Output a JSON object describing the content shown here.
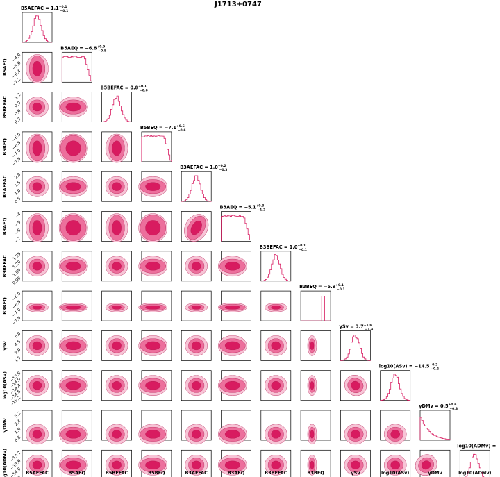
{
  "chart_data": {
    "type": "corner",
    "title": "J1713+0747",
    "colors": {
      "c1": "#d81b60",
      "c2": "#ec6f9c",
      "c3": "#f7c4d6",
      "hist": "#d81b60"
    },
    "params": [
      {
        "label": "B5AEFAC",
        "ylabel": "",
        "median_label": "B5AEFAC = 1.1",
        "sup": "+0.1",
        "sub": "−0.1",
        "xticks": [
          "0.4",
          "0.8",
          "1.2",
          "1.6",
          "2.0"
        ],
        "yticks": []
      },
      {
        "label": "B5AEQ",
        "ylabel": "B5AEQ",
        "median_label": "B5AEQ = −6.8",
        "sup": "+0.9",
        "sub": "−0.8",
        "xticks": [
          "−7.2",
          "−6.4",
          "−5.6",
          "−4.8"
        ],
        "yticks": [
          "−4.8",
          "−5.6",
          "−6.4",
          "−7.2"
        ]
      },
      {
        "label": "B5BEFAC",
        "ylabel": "B5BEFAC",
        "median_label": "B5BEFAC = 0.8",
        "sup": "+0.1",
        "sub": "−0.0",
        "xticks": [
          "0.6",
          "0.9",
          "1.2"
        ],
        "yticks": [
          "1.2",
          "0.9",
          "0.6",
          "0.3"
        ]
      },
      {
        "label": "B5BEQ",
        "ylabel": "B5BEQ",
        "median_label": "B5BEQ = −7.1",
        "sup": "+0.6",
        "sub": "−0.6",
        "xticks": [
          "−7.5",
          "−7.0",
          "−6.5"
        ],
        "yticks": [
          "−6.0",
          "−6.5",
          "−7.0",
          "−7.5"
        ]
      },
      {
        "label": "B3AEFAC",
        "ylabel": "B3AEFAC",
        "median_label": "B3AEFAC = 1.0",
        "sup": "+0.2",
        "sub": "−0.3",
        "xticks": [
          "0.5",
          "1.0",
          "1.5",
          "2.0"
        ],
        "yticks": [
          "2.0",
          "1.5",
          "1.0",
          "0.5"
        ]
      },
      {
        "label": "B3AEQ",
        "ylabel": "B3AEQ",
        "median_label": "B3AEQ = −5.1",
        "sup": "+0.3",
        "sub": "−1.2",
        "xticks": [
          "−7",
          "−6",
          "−5",
          "−4"
        ],
        "yticks": [
          "−4",
          "−5",
          "−6",
          "−7"
        ]
      },
      {
        "label": "B3BEFAC",
        "ylabel": "B3BEFAC",
        "median_label": "B3BEFAC = 1.0",
        "sup": "+0.1",
        "sub": "−0.1",
        "xticks": [
          "0.90",
          "1.05",
          "1.20",
          "1.35"
        ],
        "yticks": [
          "1.35",
          "1.20",
          "1.05",
          "0.90"
        ]
      },
      {
        "label": "B3BEQ",
        "ylabel": "B3BEQ",
        "median_label": "B3BEQ = −5.9",
        "sup": "+0.1",
        "sub": "−0.1",
        "xticks": [
          "−7.5",
          "−7.0",
          "−6.5",
          "−6.0"
        ],
        "yticks": [
          "−6.0",
          "−6.5",
          "−7.0",
          "−7.5"
        ]
      },
      {
        "label": "γSv",
        "ylabel": "γSv",
        "median_label": "γSv = 3.7",
        "sup": "+1.6",
        "sub": "−1.4",
        "xticks": [
          "1.5",
          "3.0",
          "4.5",
          "6.0"
        ],
        "yticks": [
          "6.0",
          "4.5",
          "3.0",
          "1.5"
        ]
      },
      {
        "label": "log10(ASv)",
        "ylabel": "log10(ASv)",
        "median_label": "log10(ASv) = −14.5",
        "sup": "+0.2",
        "sub": "−0.2",
        "xticks": [
          "−15.2",
          "−14.8",
          "−14.4",
          "−14.0",
          "−13.6"
        ],
        "yticks": [
          "−13.6",
          "−14.0",
          "−14.4",
          "−14.8",
          "−15.2"
        ]
      },
      {
        "label": "γDMv",
        "ylabel": "γDMv",
        "median_label": "γDMv = 0.5",
        "sup": "+0.6",
        "sub": "−0.3",
        "xticks": [
          "0.8",
          "1.6",
          "2.4",
          "3.2"
        ],
        "yticks": [
          "3.2",
          "2.4",
          "1.6",
          "0.8"
        ]
      },
      {
        "label": "log10(ADMv)",
        "ylabel": "log10(ADMv)",
        "median_label": "log10(ADMv) = −13.8",
        "sup": "+0.2",
        "sub": "−0.3",
        "xticks": [
          "−14.4",
          "−14.0",
          "−13.6",
          "−13.2"
        ],
        "yticks": [
          "−13.2",
          "−13.6",
          "−14.0",
          "−14.4"
        ]
      }
    ]
  }
}
